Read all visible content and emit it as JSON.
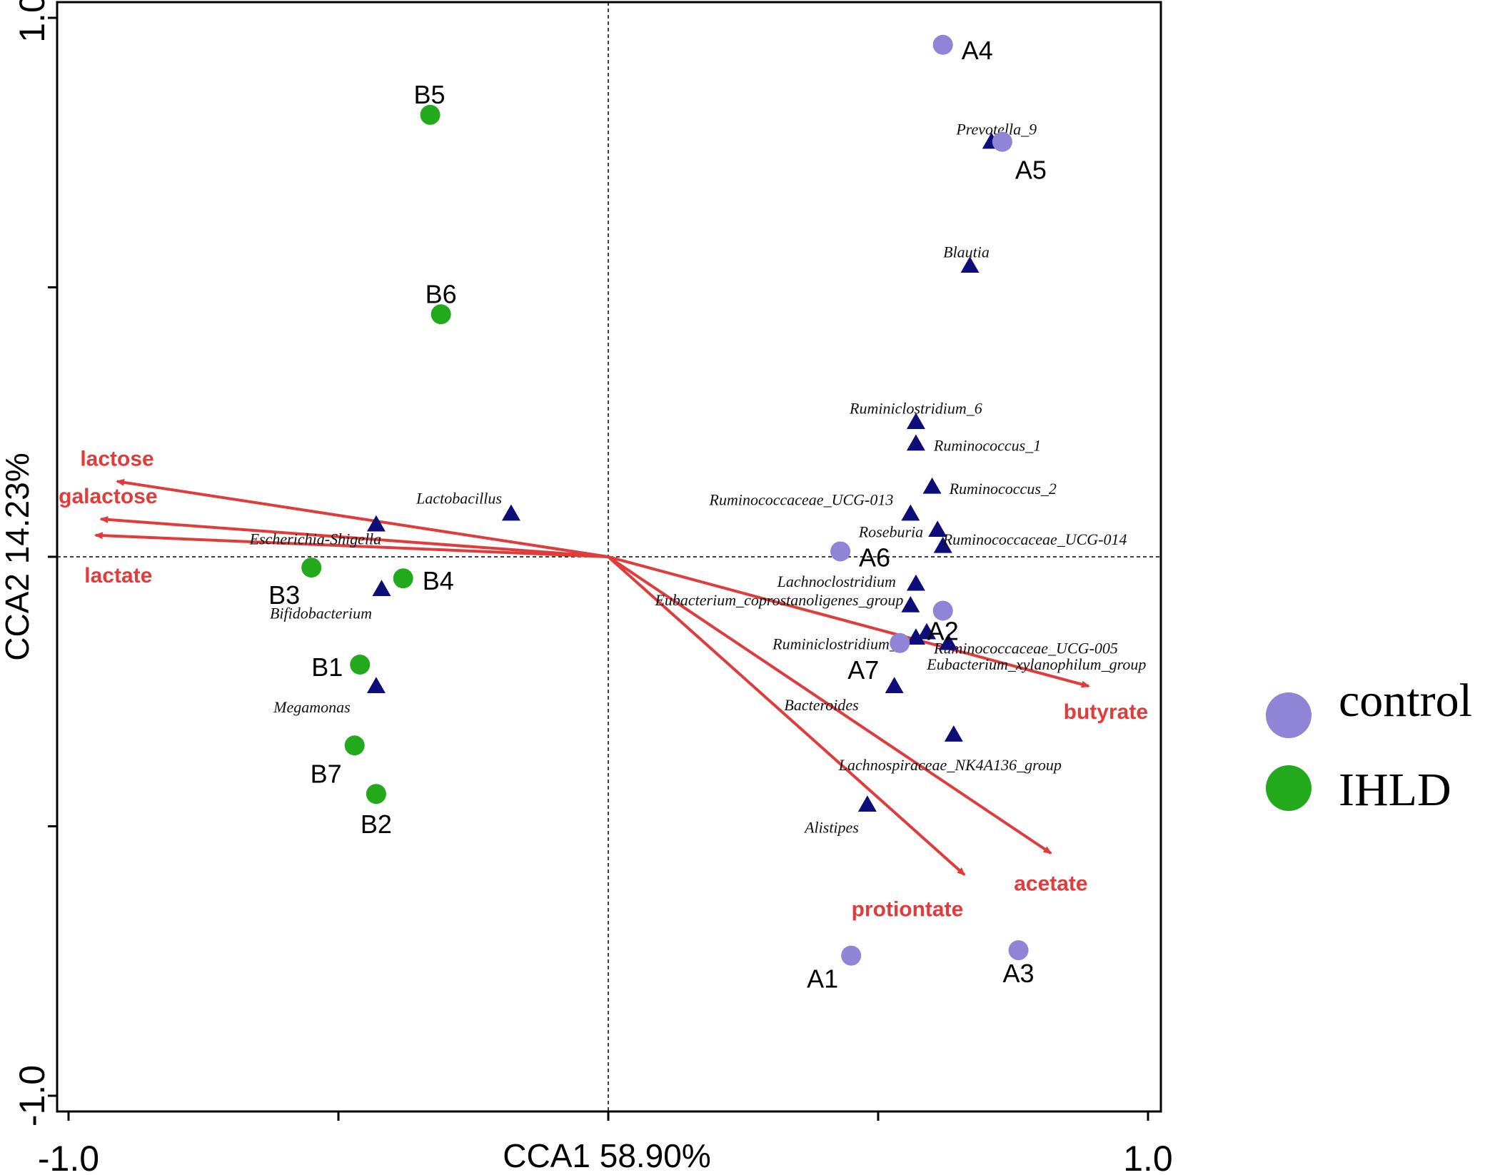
{
  "colors": {
    "control": "#8f84d6",
    "ihld": "#23a91c",
    "taxon": "#0d0d7a",
    "arrow": "#e03c3c",
    "axis": "#000000"
  },
  "chart_data": {
    "type": "scatter",
    "subtype": "CCA triplot",
    "xlabel": "CCA1  58.90%",
    "ylabel": "CCA2  14.23%",
    "xlim": [
      -1.02,
      1.02
    ],
    "ylim": [
      -1.02,
      1.02
    ],
    "x_tick_labels": [
      {
        "value": -1.0,
        "label": "-1.0"
      },
      {
        "value": 1.0,
        "label": "1.0"
      }
    ],
    "y_tick_labels": [
      {
        "value": 1.0,
        "label": "1.0"
      },
      {
        "value": -1.0,
        "label": "-1.0"
      }
    ],
    "x_ticks": [
      -1.0,
      -0.5,
      0.0,
      0.5,
      1.0
    ],
    "y_ticks": [
      -1.0,
      -0.5,
      0.0,
      0.5,
      1.0
    ],
    "legend": [
      {
        "name": "control",
        "group": "control"
      },
      {
        "name": "IHLD",
        "group": "ihld"
      }
    ],
    "samples": [
      {
        "label": "A1",
        "group": "control",
        "x": 0.45,
        "y": -0.74
      },
      {
        "label": "A2",
        "group": "control",
        "x": 0.62,
        "y": -0.1
      },
      {
        "label": "A3",
        "group": "control",
        "x": 0.76,
        "y": -0.73
      },
      {
        "label": "A4",
        "group": "control",
        "x": 0.62,
        "y": 0.95
      },
      {
        "label": "A5",
        "group": "control",
        "x": 0.73,
        "y": 0.77
      },
      {
        "label": "A6",
        "group": "control",
        "x": 0.43,
        "y": 0.01
      },
      {
        "label": "A7",
        "group": "control",
        "x": 0.54,
        "y": -0.16
      },
      {
        "label": "B1",
        "group": "ihld",
        "x": -0.46,
        "y": -0.2
      },
      {
        "label": "B2",
        "group": "ihld",
        "x": -0.43,
        "y": -0.44
      },
      {
        "label": "B3",
        "group": "ihld",
        "x": -0.55,
        "y": -0.02
      },
      {
        "label": "B4",
        "group": "ihld",
        "x": -0.38,
        "y": -0.04
      },
      {
        "label": "B5",
        "group": "ihld",
        "x": -0.33,
        "y": 0.82
      },
      {
        "label": "B6",
        "group": "ihld",
        "x": -0.31,
        "y": 0.45
      },
      {
        "label": "B7",
        "group": "ihld",
        "x": -0.47,
        "y": -0.35
      }
    ],
    "taxa": [
      {
        "name": "Prevotella_9",
        "x": 0.71,
        "y": 0.77
      },
      {
        "name": "Blautia",
        "x": 0.67,
        "y": 0.54
      },
      {
        "name": "Ruminiclostridium_6",
        "x": 0.57,
        "y": 0.25
      },
      {
        "name": "Ruminococcus_1",
        "x": 0.57,
        "y": 0.21
      },
      {
        "name": "Ruminococcus_2",
        "x": 0.6,
        "y": 0.13
      },
      {
        "name": "Ruminococcaceae_UCG-013",
        "x": 0.56,
        "y": 0.08
      },
      {
        "name": "Roseburia",
        "x": 0.61,
        "y": 0.05
      },
      {
        "name": "Ruminococcaceae_UCG-014",
        "x": 0.62,
        "y": 0.02
      },
      {
        "name": "Lachnoclostridium",
        "x": 0.57,
        "y": -0.05
      },
      {
        "name": "Eubacterium_coprostanoligenes_group",
        "x": 0.56,
        "y": -0.09
      },
      {
        "name": "Ruminococcaceae_UCG-005",
        "x": 0.59,
        "y": -0.14
      },
      {
        "name": "Ruminiclostridium_5",
        "x": 0.57,
        "y": -0.15
      },
      {
        "name": "Eubacterium_xylanophilum_group",
        "x": 0.63,
        "y": -0.16
      },
      {
        "name": "Bacteroides",
        "x": 0.53,
        "y": -0.24
      },
      {
        "name": "Lachnospiraceae_NK4A136_group",
        "x": 0.64,
        "y": -0.33
      },
      {
        "name": "Alistipes",
        "x": 0.48,
        "y": -0.46
      },
      {
        "name": "Lactobacillus",
        "x": -0.18,
        "y": 0.08
      },
      {
        "name": "Escherichia-Shigella",
        "x": -0.43,
        "y": 0.06
      },
      {
        "name": "Bifidobacterium",
        "x": -0.42,
        "y": -0.06
      },
      {
        "name": "Megamonas",
        "x": -0.43,
        "y": -0.24
      }
    ],
    "environmental_vectors": [
      {
        "name": "lactose",
        "x": -0.91,
        "y": 0.14
      },
      {
        "name": "galactose",
        "x": -0.94,
        "y": 0.07
      },
      {
        "name": "lactate",
        "x": -0.95,
        "y": 0.04
      },
      {
        "name": "butyrate",
        "x": 0.89,
        "y": -0.24
      },
      {
        "name": "acetate",
        "x": 0.82,
        "y": -0.55
      },
      {
        "name": "protiontate",
        "x": 0.66,
        "y": -0.59
      }
    ]
  }
}
